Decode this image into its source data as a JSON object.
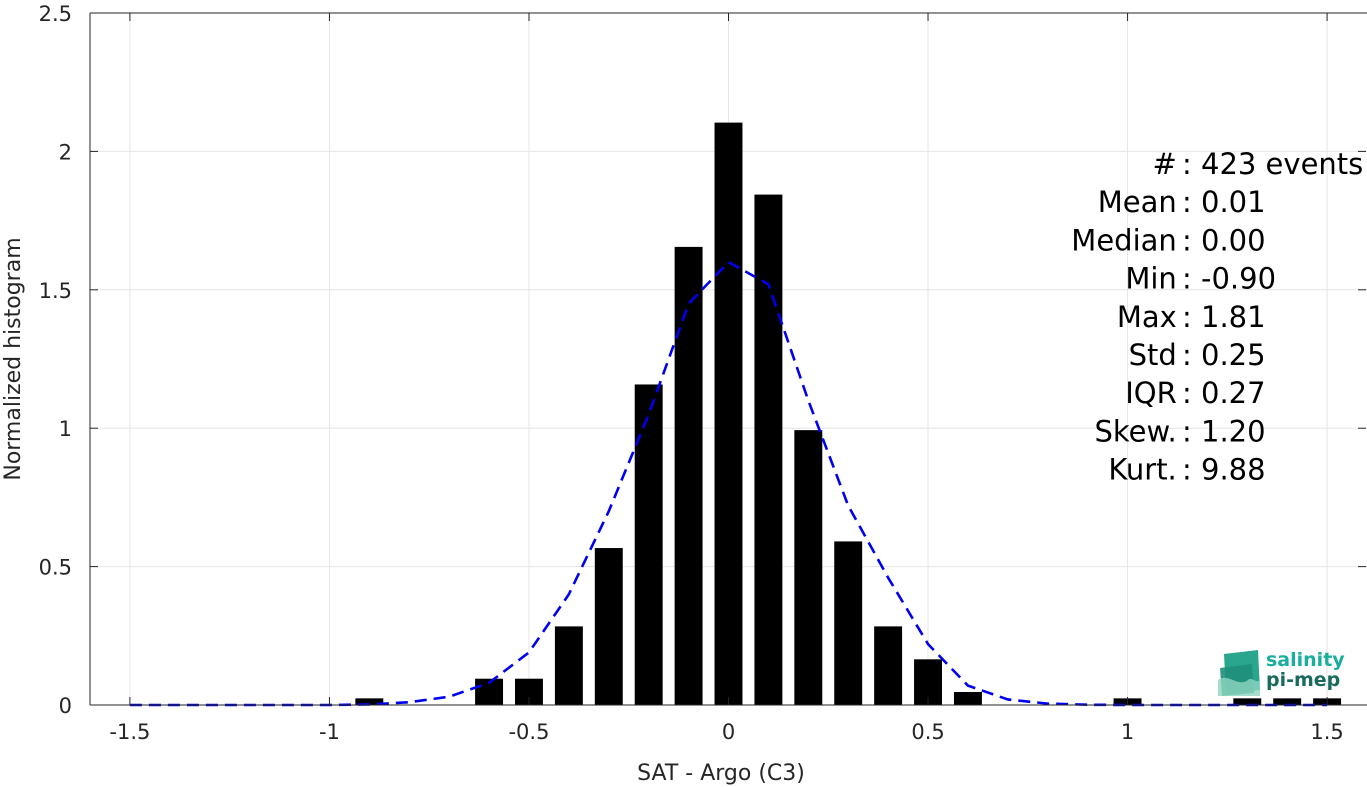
{
  "chart_data": {
    "type": "bar",
    "xlabel": "SAT - Argo (C3)",
    "ylabel": "Normalized histogram",
    "xlim": [
      -1.6,
      1.6
    ],
    "ylim": [
      0,
      2.5
    ],
    "grid": true,
    "xticks": [
      -1.5,
      -1,
      -0.5,
      0,
      0.5,
      1,
      1.5
    ],
    "xtick_labels": [
      "-1.5",
      "-1",
      "-0.5",
      "0",
      "0.5",
      "1",
      "1.5"
    ],
    "yticks": [
      0,
      0.5,
      1,
      1.5,
      2,
      2.5
    ],
    "ytick_labels": [
      "0",
      "0.5",
      "1",
      "1.5",
      "2",
      "2.5"
    ],
    "bar_color": "#000000",
    "bar_width": 0.07,
    "bars": [
      {
        "x": -0.9,
        "y": 0.024
      },
      {
        "x": -0.6,
        "y": 0.095
      },
      {
        "x": -0.5,
        "y": 0.095
      },
      {
        "x": -0.4,
        "y": 0.284
      },
      {
        "x": -0.3,
        "y": 0.567
      },
      {
        "x": -0.2,
        "y": 1.158
      },
      {
        "x": -0.1,
        "y": 1.655
      },
      {
        "x": 0.0,
        "y": 2.104
      },
      {
        "x": 0.1,
        "y": 1.844
      },
      {
        "x": 0.2,
        "y": 0.993
      },
      {
        "x": 0.3,
        "y": 0.591
      },
      {
        "x": 0.4,
        "y": 0.284
      },
      {
        "x": 0.5,
        "y": 0.165
      },
      {
        "x": 0.6,
        "y": 0.047
      },
      {
        "x": 1.0,
        "y": 0.024
      },
      {
        "x": 1.3,
        "y": 0.024
      },
      {
        "x": 1.4,
        "y": 0.024
      },
      {
        "x": 1.5,
        "y": 0.024
      }
    ],
    "fit_curve": {
      "color": "#0000ee",
      "style": "dashed",
      "x": [
        -1.5,
        -1.4,
        -1.3,
        -1.2,
        -1.1,
        -1.0,
        -0.9,
        -0.8,
        -0.7,
        -0.6,
        -0.5,
        -0.4,
        -0.3,
        -0.2,
        -0.1,
        0.0,
        0.1,
        0.2,
        0.3,
        0.4,
        0.5,
        0.6,
        0.7,
        0.8,
        0.9,
        1.0,
        1.1,
        1.2,
        1.3,
        1.4,
        1.5
      ],
      "y": [
        0.0,
        0.0,
        0.0,
        0.0,
        0.0,
        0.0,
        0.002,
        0.01,
        0.03,
        0.08,
        0.19,
        0.4,
        0.7,
        1.05,
        1.45,
        1.6,
        1.52,
        1.1,
        0.72,
        0.46,
        0.22,
        0.07,
        0.02,
        0.005,
        0.001,
        0.0,
        0.0,
        0.0,
        0.0,
        0.0,
        0.0
      ]
    },
    "annotations": [
      {
        "label": "#  ",
        "value": ": 423 events"
      },
      {
        "label": "Mean ",
        "value": ": 0.01"
      },
      {
        "label": "Median ",
        "value": ": 0.00"
      },
      {
        "label": "Min ",
        "value": ": -0.90"
      },
      {
        "label": "Max ",
        "value": ": 1.81"
      },
      {
        "label": "Std ",
        "value": ": 0.25"
      },
      {
        "label": "IQR ",
        "value": ": 0.27"
      },
      {
        "label": "Skew. ",
        "value": ": 1.20"
      },
      {
        "label": "Kurt. ",
        "value": ": 9.88"
      }
    ]
  },
  "logo": {
    "line1": "salinity",
    "line2": "pi-mep",
    "color1": "#1aae9f",
    "color2": "#1a6b5e"
  }
}
